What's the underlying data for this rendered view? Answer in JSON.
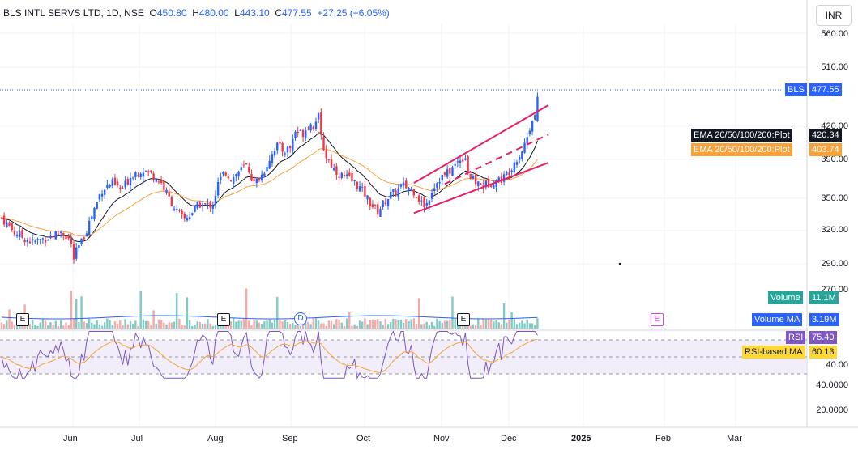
{
  "header": {
    "symbol": "BLS INTL SERVS LTD, 1D, NSE",
    "open_k": "O",
    "open_v": "450.80",
    "high_k": "H",
    "high_v": "480.00",
    "low_k": "L",
    "low_v": "443.10",
    "close_k": "C",
    "close_v": "477.55",
    "change": "+27.25 (+6.05%)"
  },
  "currency": "INR",
  "price_axis": [
    "560.00",
    "510.00",
    "477.55",
    "420.00",
    "390.00",
    "350.00",
    "320.00",
    "290.00",
    "270.00"
  ],
  "rsi_axis": [
    "75.40",
    "60.13",
    "40.00",
    "40.0000",
    "20.0000"
  ],
  "time_axis": [
    "Jun",
    "Jul",
    "Aug",
    "Sep",
    "Oct",
    "Nov",
    "Dec",
    "2025",
    "Feb",
    "Mar"
  ],
  "tags": {
    "price_symbol": "BLS",
    "price_value": "477.55",
    "ema_black_label": "EMA 20/50/100/200:Plot",
    "ema_black_value": "420.34",
    "ema_orange_label": "EMA 20/50/100/200:Plot",
    "ema_orange_value": "403.74",
    "volume_label": "Volume",
    "volume_value": "11.1M",
    "volume_ma_label": "Volume MA",
    "volume_ma_value": "3.19M",
    "rsi_label": "RSI",
    "rsi_value": "75.40",
    "rsi_ma_label": "RSI-based MA",
    "rsi_ma_value": "60.13"
  },
  "events": [
    "E",
    "E",
    "D",
    "E",
    "E"
  ],
  "colors": {
    "up": "#2962ff",
    "down": "#f23645",
    "ema_black": "#131722",
    "ema_orange": "#f7a23b",
    "channel": "#e91e63",
    "vol_up": "#80cbc4",
    "vol_down": "#f7a9a7",
    "rsi": "#7e57c2"
  },
  "chart_data": {
    "type": "candlestick",
    "symbol": "BLS INTL SERVS LTD",
    "timeframe": "1D",
    "exchange": "NSE",
    "last": {
      "open": 450.8,
      "high": 480.0,
      "low": 443.1,
      "close": 477.55
    },
    "ylim": [
      262,
      590
    ],
    "x_range": [
      "May",
      "Mar"
    ],
    "close_path": [
      {
        "d": 0,
        "c": 345
      },
      {
        "d": 8,
        "c": 328
      },
      {
        "d": 18,
        "c": 318
      },
      {
        "d": 28,
        "c": 324
      },
      {
        "d": 35,
        "c": 330
      },
      {
        "d": 40,
        "c": 320
      },
      {
        "d": 42,
        "c": 300
      },
      {
        "d": 44,
        "c": 310
      },
      {
        "d": 47,
        "c": 320
      },
      {
        "d": 52,
        "c": 345
      },
      {
        "d": 58,
        "c": 375
      },
      {
        "d": 64,
        "c": 383
      },
      {
        "d": 70,
        "c": 375
      },
      {
        "d": 76,
        "c": 393
      },
      {
        "d": 82,
        "c": 398
      },
      {
        "d": 88,
        "c": 392
      },
      {
        "d": 93,
        "c": 383
      },
      {
        "d": 97,
        "c": 368
      },
      {
        "d": 102,
        "c": 352
      },
      {
        "d": 106,
        "c": 343
      },
      {
        "d": 110,
        "c": 349
      },
      {
        "d": 115,
        "c": 360
      },
      {
        "d": 119,
        "c": 358
      },
      {
        "d": 123,
        "c": 360
      },
      {
        "d": 126,
        "c": 382
      },
      {
        "d": 130,
        "c": 396
      },
      {
        "d": 134,
        "c": 387
      },
      {
        "d": 138,
        "c": 396
      },
      {
        "d": 143,
        "c": 402
      },
      {
        "d": 147,
        "c": 382
      },
      {
        "d": 152,
        "c": 393
      },
      {
        "d": 156,
        "c": 410
      },
      {
        "d": 160,
        "c": 425
      },
      {
        "d": 164,
        "c": 418
      },
      {
        "d": 168,
        "c": 422
      },
      {
        "d": 171,
        "c": 440
      },
      {
        "d": 175,
        "c": 437
      },
      {
        "d": 179,
        "c": 448
      },
      {
        "d": 182,
        "c": 445
      },
      {
        "d": 184,
        "c": 462
      },
      {
        "d": 186,
        "c": 432
      },
      {
        "d": 189,
        "c": 412
      },
      {
        "d": 193,
        "c": 400
      },
      {
        "d": 197,
        "c": 392
      },
      {
        "d": 202,
        "c": 388
      },
      {
        "d": 207,
        "c": 381
      },
      {
        "d": 211,
        "c": 372
      },
      {
        "d": 215,
        "c": 360
      },
      {
        "d": 219,
        "c": 352
      },
      {
        "d": 222,
        "c": 360
      },
      {
        "d": 226,
        "c": 370
      },
      {
        "d": 229,
        "c": 372
      },
      {
        "d": 233,
        "c": 380
      },
      {
        "d": 237,
        "c": 378
      },
      {
        "d": 241,
        "c": 373
      },
      {
        "d": 244,
        "c": 362
      },
      {
        "d": 247,
        "c": 358
      },
      {
        "d": 251,
        "c": 378
      },
      {
        "d": 255,
        "c": 388
      },
      {
        "d": 259,
        "c": 393
      },
      {
        "d": 263,
        "c": 400
      },
      {
        "d": 267,
        "c": 410
      },
      {
        "d": 270,
        "c": 412
      },
      {
        "d": 272,
        "c": 390
      },
      {
        "d": 276,
        "c": 384
      },
      {
        "d": 280,
        "c": 380
      },
      {
        "d": 284,
        "c": 383
      },
      {
        "d": 288,
        "c": 386
      },
      {
        "d": 292,
        "c": 388
      },
      {
        "d": 295,
        "c": 395
      },
      {
        "d": 299,
        "c": 408
      },
      {
        "d": 302,
        "c": 415
      },
      {
        "d": 305,
        "c": 428
      },
      {
        "d": 307,
        "c": 440
      },
      {
        "d": 309,
        "c": 455
      },
      {
        "d": 310,
        "c": 450
      },
      {
        "d": 312,
        "c": 477.55
      }
    ],
    "ema_black_end": 420.34,
    "ema_orange_end": 403.74,
    "volume_last": "11.1M",
    "volume_ma": "3.19M",
    "rsi_last": 75.4,
    "rsi_ma": 60.13
  }
}
